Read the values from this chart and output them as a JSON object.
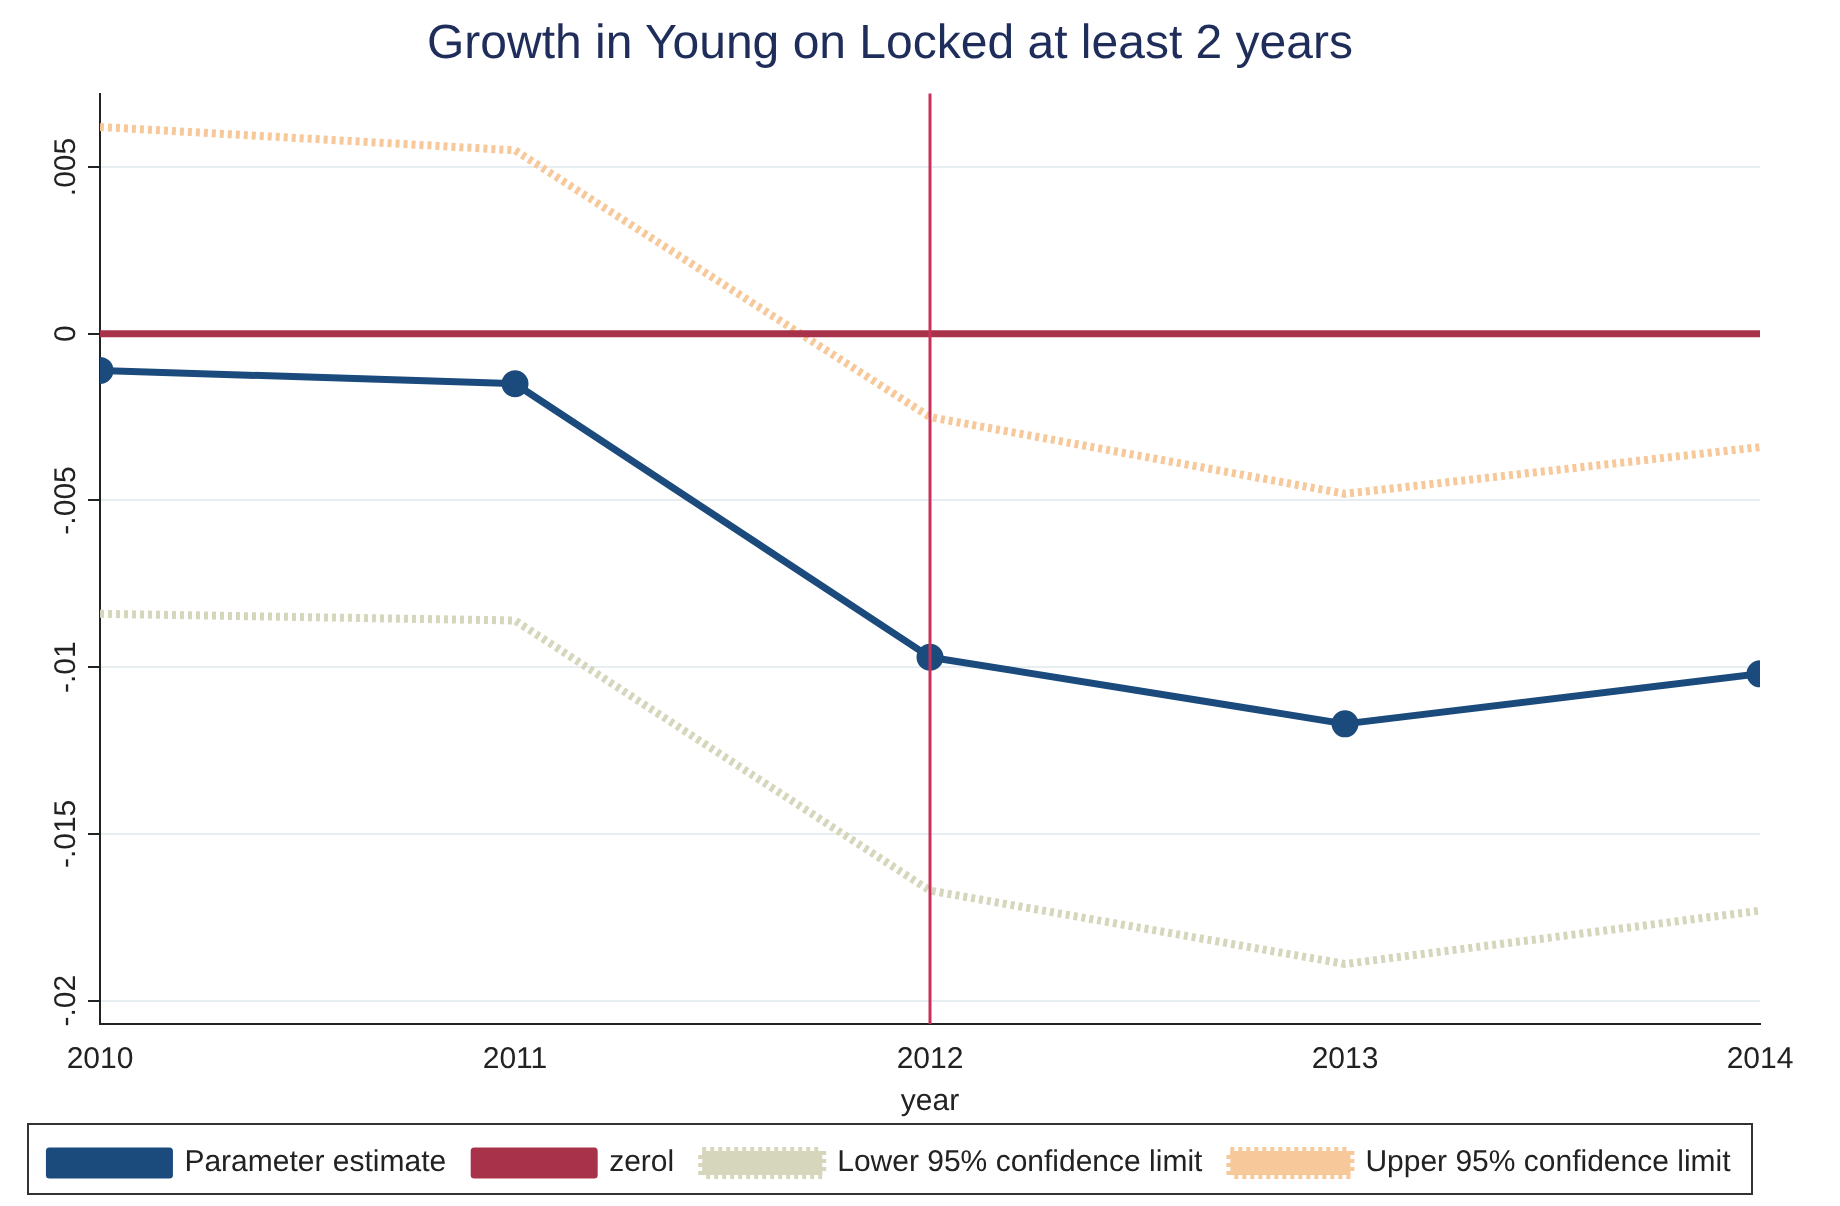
{
  "chart_data": {
    "type": "line",
    "title": "Growth in Young on Locked at least 2 years",
    "xlabel": "year",
    "x": [
      2010,
      2011,
      2012,
      2013,
      2014
    ],
    "xlim": [
      2010,
      2014
    ],
    "xticks": [
      2010,
      2011,
      2012,
      2013,
      2014
    ],
    "ylim": [
      -0.0207,
      0.0072
    ],
    "yticks": [
      {
        "value": 0.005,
        "label": ".005"
      },
      {
        "value": 0,
        "label": "0"
      },
      {
        "value": -0.005,
        "label": "-.005"
      },
      {
        "value": -0.01,
        "label": "-.01"
      },
      {
        "value": -0.015,
        "label": "-.015"
      },
      {
        "value": -0.02,
        "label": "-.02"
      }
    ],
    "grid": "y",
    "legend": "bottom",
    "ref_lines": [
      {
        "axis": "x",
        "value": 2012,
        "color": "#c8325a"
      }
    ],
    "series": [
      {
        "name": "Parameter estimate",
        "color": "#1b4a7c",
        "marker": "circle",
        "line_style": "solid",
        "values": [
          -0.0011,
          -0.0015,
          -0.0097,
          -0.0117,
          -0.0102
        ]
      },
      {
        "name": "zerol",
        "color": "#a8324a",
        "marker": "none",
        "line_style": "solid",
        "values": [
          0,
          0,
          0,
          0,
          0
        ]
      },
      {
        "name": "Lower 95% confidence limit",
        "color": "#d6d6bc",
        "marker": "none",
        "line_style": "dotted",
        "values": [
          -0.0084,
          -0.0086,
          -0.0167,
          -0.0189,
          -0.0173
        ]
      },
      {
        "name": "Upper 95% confidence limit",
        "color": "#f6c89a",
        "marker": "none",
        "line_style": "dotted",
        "values": [
          0.0062,
          0.0055,
          -0.0025,
          -0.0048,
          -0.0034
        ]
      }
    ]
  }
}
